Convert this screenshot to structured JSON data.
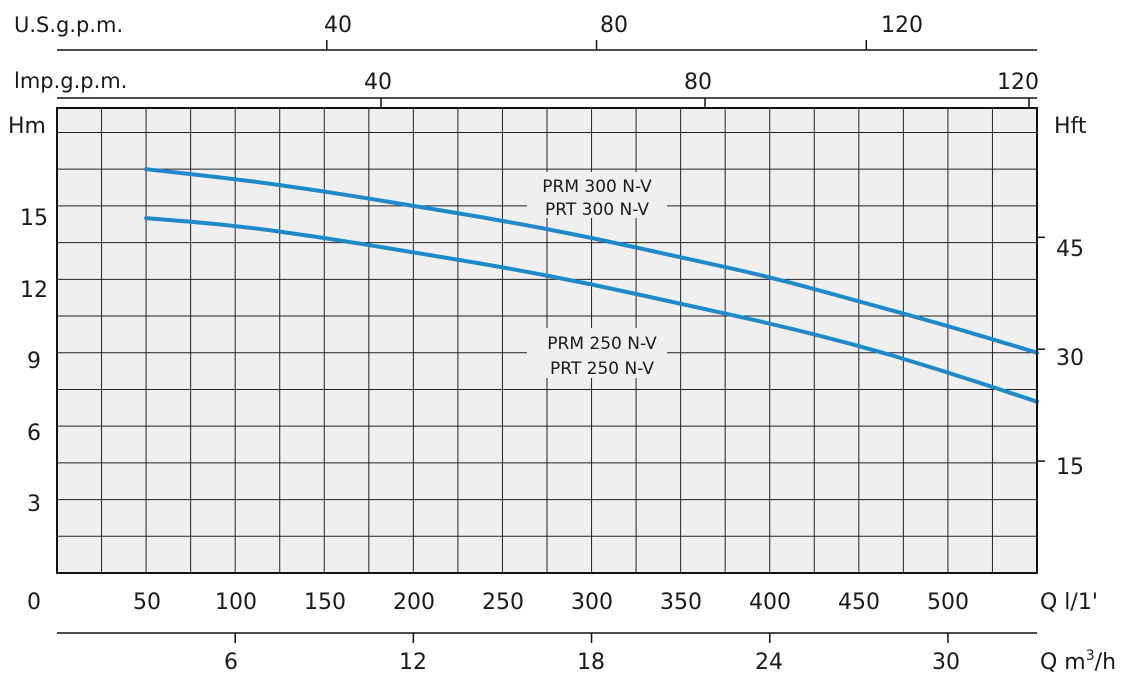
{
  "chart_data": {
    "type": "line",
    "y_left_label": "Hm",
    "y_right_label": "Hft",
    "y_left_ticks": [
      "3",
      "6",
      "9",
      "12",
      "15"
    ],
    "y_right_ticks": [
      "15",
      "30",
      "45"
    ],
    "x_bottom_zero": "0",
    "x_bottom_ticks": [
      "50",
      "100",
      "150",
      "200",
      "250",
      "300",
      "350",
      "400",
      "450",
      "500"
    ],
    "x_bottom_unit": "Q l/1'",
    "x_m3h_ticks": [
      "6",
      "12",
      "18",
      "24",
      "30"
    ],
    "x_m3h_unit_base": "Q m",
    "x_m3h_unit_sup": "3",
    "x_m3h_unit_tail": "/h",
    "x_usgpm_label": "U.S.g.p.m.",
    "x_usgpm_ticks": [
      "40",
      "80",
      "120"
    ],
    "x_impgpm_label": "lmp.g.p.m.",
    "x_impgpm_ticks": [
      "40",
      "80",
      "120"
    ],
    "x_range_lmin": [
      0,
      550
    ],
    "y_range_m": [
      0,
      19
    ],
    "grid": true,
    "curve_color": "#1f8ac9",
    "series": [
      {
        "name_line1": "PRM 300 N-V",
        "name_line2": "PRT 300 N-V",
        "x": [
          50,
          100,
          150,
          200,
          250,
          300,
          350,
          400,
          450,
          500,
          550
        ],
        "y": [
          16.5,
          16.1,
          15.6,
          15.0,
          14.4,
          13.7,
          12.9,
          12.1,
          11.1,
          10.1,
          9.0
        ]
      },
      {
        "name_line1": "PRM 250 N-V",
        "name_line2": "PRT 250 N-V",
        "x": [
          50,
          100,
          150,
          200,
          250,
          300,
          350,
          400,
          450,
          500,
          550
        ],
        "y": [
          14.5,
          14.2,
          13.7,
          13.1,
          12.5,
          11.8,
          11.0,
          10.2,
          9.3,
          8.2,
          7.0
        ]
      }
    ]
  }
}
